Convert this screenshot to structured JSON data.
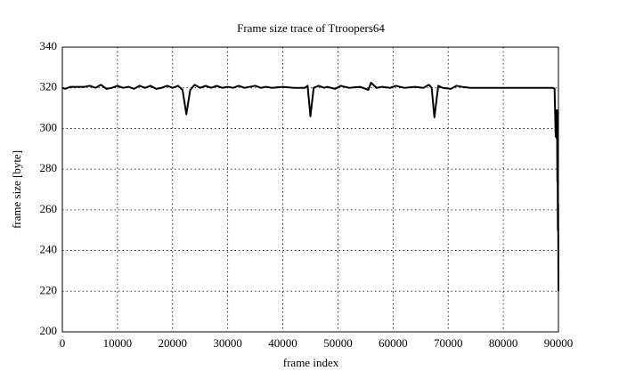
{
  "chart_data": {
    "type": "line",
    "title": "Frame size trace of Ttroopers64",
    "x_label": "frame index",
    "y_label": "frame size [byte]",
    "xlim": [
      0,
      90000
    ],
    "xticks": [
      0,
      10000,
      20000,
      30000,
      40000,
      50000,
      60000,
      70000,
      80000,
      90000
    ],
    "ylim": [
      200,
      340
    ],
    "yticks": [
      200,
      220,
      240,
      260,
      280,
      300,
      320,
      340
    ],
    "grid": true,
    "color": "#000000",
    "x": [
      0,
      500,
      1500,
      4000,
      5000,
      6000,
      7000,
      8000,
      9000,
      10000,
      11000,
      12000,
      13000,
      14000,
      15000,
      16000,
      17000,
      18000,
      19000,
      20000,
      21000,
      21800,
      22500,
      23200,
      24000,
      25000,
      26000,
      27000,
      28000,
      29000,
      30000,
      31000,
      32000,
      33000,
      34000,
      35000,
      36000,
      37000,
      38000,
      40000,
      42000,
      44000,
      44500,
      45000,
      45600,
      46500,
      47500,
      48000,
      49500,
      50500,
      52000,
      54000,
      55500,
      56000,
      57000,
      58000,
      59500,
      60500,
      62000,
      64000,
      65500,
      66500,
      67000,
      67500,
      68200,
      69000,
      70500,
      71500,
      72500,
      74000,
      80000,
      85000,
      89000,
      89300,
      89500,
      89600,
      89700,
      89750,
      89800,
      89850,
      89900,
      89950,
      90000
    ],
    "values": [
      320,
      319.5,
      320.5,
      320.5,
      321,
      320,
      321.5,
      319.5,
      320,
      321,
      320,
      320.5,
      319.5,
      321,
      320,
      321,
      319.5,
      320,
      321,
      320,
      321,
      319,
      307,
      319,
      321.5,
      320,
      321,
      320,
      321,
      320,
      320.5,
      320,
      321,
      320,
      320.5,
      321,
      320,
      320.5,
      320,
      320.5,
      320,
      320,
      321,
      306,
      320,
      321,
      320,
      320.5,
      319.5,
      321,
      320,
      320.5,
      319,
      322.5,
      320,
      320.5,
      320,
      321,
      320,
      320.5,
      320,
      321.5,
      320,
      305.5,
      321,
      320,
      319.5,
      321,
      320.5,
      320,
      320,
      320,
      320,
      319.5,
      296,
      309,
      295,
      309,
      274,
      285,
      250,
      263,
      220
    ]
  }
}
